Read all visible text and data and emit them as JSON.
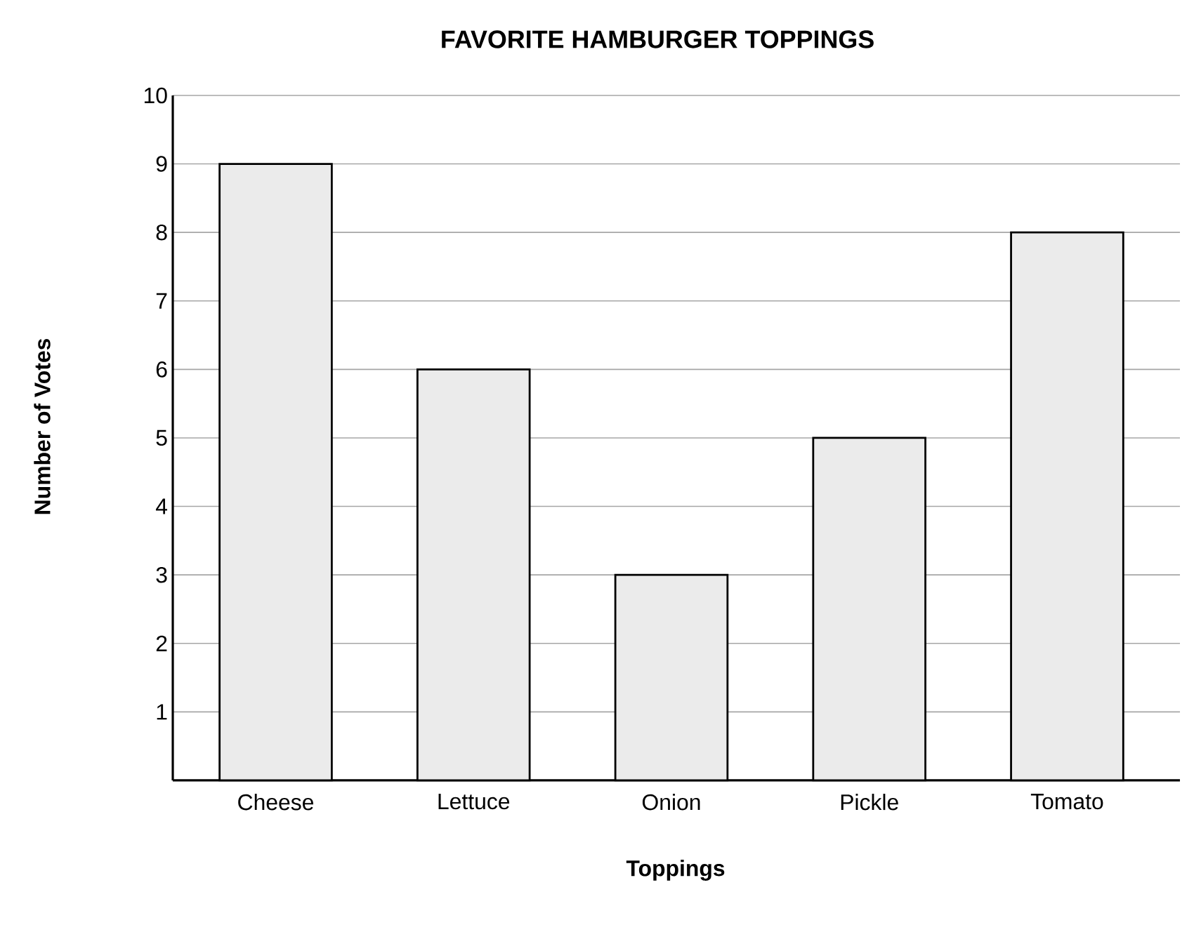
{
  "chart_data": {
    "type": "bar",
    "title": "FAVORITE HAMBURGER TOPPINGS",
    "xlabel": "Toppings",
    "ylabel": "Number of Votes",
    "categories": [
      "Cheese",
      "Lettuce",
      "Onion",
      "Pickle",
      "Tomato"
    ],
    "values": [
      9,
      6,
      3,
      5,
      8
    ],
    "color": "#ebebeb",
    "ylim": [
      0,
      10
    ],
    "yticks": [
      1,
      2,
      3,
      4,
      5,
      6,
      7,
      8,
      9,
      10
    ],
    "grid": "y"
  }
}
